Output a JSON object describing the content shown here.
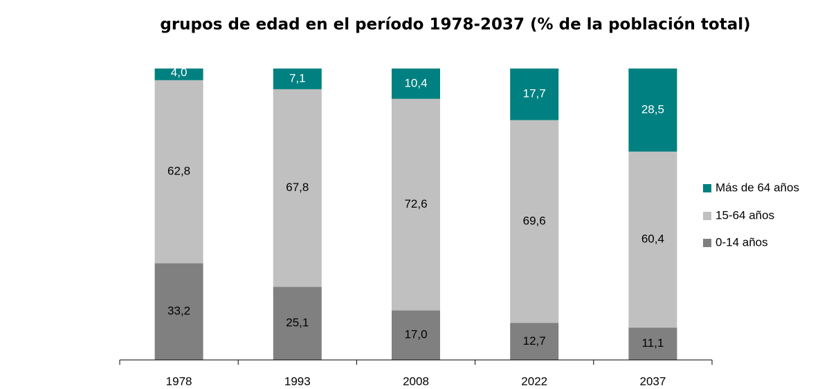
{
  "chart_data": {
    "type": "stacked_bar",
    "title": "grupos de edad en el período 1978-2037 (% de la población total)",
    "categories": [
      "1978",
      "1993",
      "2008",
      "2022",
      "2037"
    ],
    "series": [
      {
        "name": "0-14 años",
        "color": "#808080",
        "values": [
          33.2,
          25.1,
          17.0,
          12.7,
          11.1
        ],
        "value_labels": [
          "33,2",
          "25,1",
          "17,0",
          "12,7",
          "11,1"
        ]
      },
      {
        "name": "15-64 años",
        "color": "#c0c0c0",
        "values": [
          62.8,
          67.8,
          72.6,
          69.6,
          60.4
        ],
        "value_labels": [
          "62,8",
          "67,8",
          "72,6",
          "69,6",
          "60,4"
        ]
      },
      {
        "name": "Más de 64 años",
        "color": "#008080",
        "values": [
          4.0,
          7.1,
          10.4,
          17.7,
          28.5
        ],
        "value_labels": [
          "4,0",
          "7,1",
          "10,4",
          "17,7",
          "28,5"
        ]
      }
    ],
    "legend": "right"
  }
}
